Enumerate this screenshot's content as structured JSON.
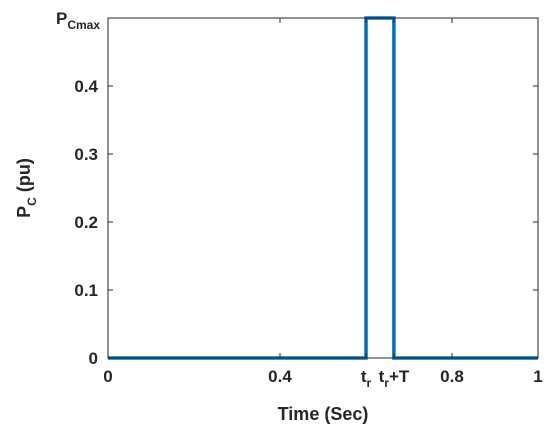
{
  "chart_data": {
    "type": "line",
    "xlabel": "Time (Sec)",
    "ylabel": {
      "main": "P",
      "sub": "C",
      "rest": " (pu)"
    },
    "xlim": [
      0,
      1
    ],
    "ylim": [
      0,
      0.5
    ],
    "grid": false,
    "x_ticks": [
      {
        "value": 0,
        "label": "0"
      },
      {
        "value": 0.4,
        "label": "0.4"
      },
      {
        "value": 0.8,
        "label": "0.8"
      },
      {
        "value": 1,
        "label": "1"
      }
    ],
    "x_special_ticks": [
      {
        "value": 0.6,
        "main": "t",
        "sub": "r",
        "rest": ""
      },
      {
        "value": 0.665,
        "main": "t",
        "sub": "r",
        "rest": "+T"
      }
    ],
    "y_ticks": [
      {
        "value": 0,
        "label": "0"
      },
      {
        "value": 0.1,
        "label": "0.1"
      },
      {
        "value": 0.2,
        "label": "0.2"
      },
      {
        "value": 0.3,
        "label": "0.3"
      },
      {
        "value": 0.4,
        "label": "0.4"
      }
    ],
    "y_special_tick": {
      "value": 0.5,
      "main": "P",
      "sub": "Cmax"
    },
    "series": [
      {
        "color": "#0072BD",
        "x": [
          0,
          0.6,
          0.6,
          0.665,
          0.665,
          1
        ],
        "y": [
          0,
          0,
          0.5,
          0.5,
          0,
          0
        ]
      }
    ]
  }
}
